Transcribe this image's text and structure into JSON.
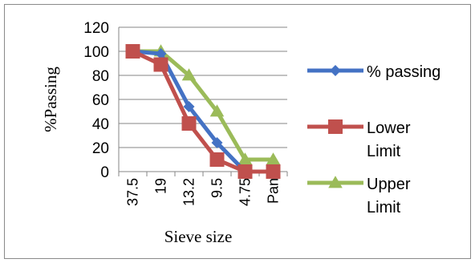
{
  "chart_data": {
    "type": "line",
    "title": "",
    "xlabel": "Sieve size",
    "ylabel": "%Passing",
    "categories": [
      "37.5",
      "19",
      "13.2",
      "9.5",
      "4.75",
      "Pan"
    ],
    "ylim": [
      0,
      120
    ],
    "yticks": [
      0,
      20,
      40,
      60,
      80,
      100,
      120
    ],
    "grid": "horizontal",
    "legend_position": "right",
    "series": [
      {
        "name": "% passing",
        "legend_lines": [
          "% passing"
        ],
        "marker": "diamond",
        "color": "#4472c4",
        "values": [
          100,
          98,
          54,
          24,
          0,
          0
        ]
      },
      {
        "name": "Lower Limit",
        "legend_lines": [
          "Lower",
          "Limit"
        ],
        "marker": "square",
        "color": "#c0504d",
        "values": [
          100,
          89,
          40,
          10,
          0,
          0
        ]
      },
      {
        "name": "Upper Limit",
        "legend_lines": [
          "Upper",
          "Limit"
        ],
        "marker": "triangle",
        "color": "#9bbb59",
        "values": [
          100,
          100,
          80,
          50,
          10,
          10
        ]
      }
    ]
  }
}
